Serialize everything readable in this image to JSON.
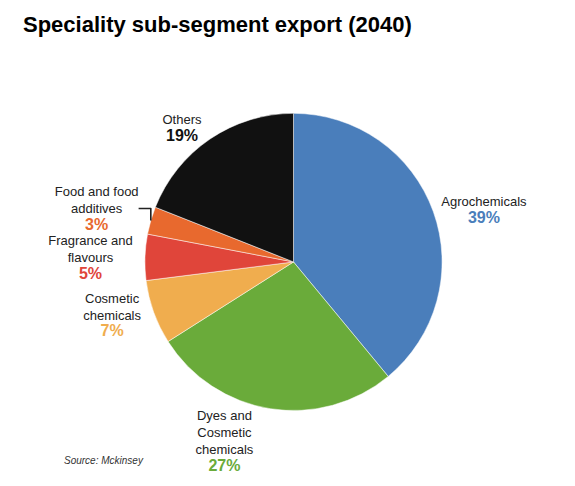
{
  "chart_data": {
    "type": "pie",
    "title": "Speciality sub-segment export (2040)",
    "categories": [
      "Agrochemicals",
      "Dyes and Cosmetic chemicals",
      "Cosmetic chemicals",
      "Fragrance and flavours",
      "Food and food additives",
      "Others"
    ],
    "values": [
      39,
      27,
      7,
      5,
      3,
      19
    ],
    "value_labels": [
      "39%",
      "27%",
      "7%",
      "5%",
      "3%",
      "19%"
    ],
    "colors": [
      "#4a7ebb",
      "#6aab3a",
      "#f0ad4e",
      "#e0453a",
      "#e8692e",
      "#111111"
    ],
    "data_labels": true,
    "source": "Source: Mckinsey"
  }
}
